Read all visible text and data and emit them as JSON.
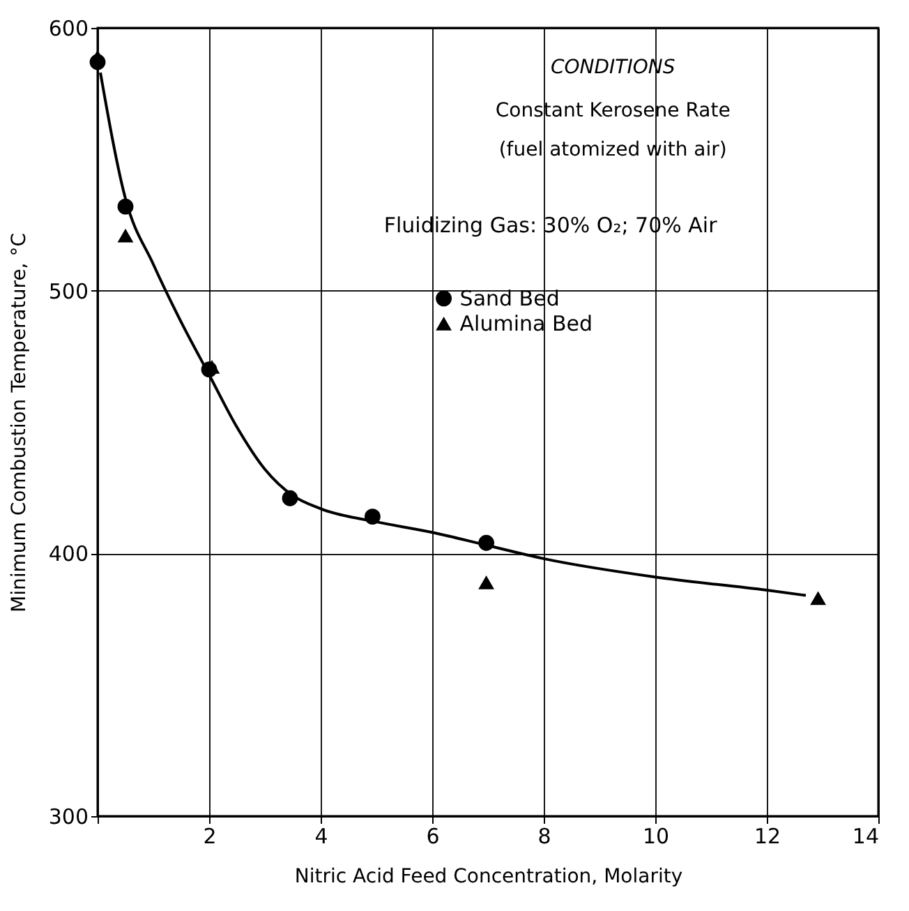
{
  "chart_data": {
    "type": "scatter",
    "xlabel": "Nitric Acid Feed Concentration, Molarity",
    "ylabel": "Minimum Combustion Temperature, °C",
    "xlim": [
      0,
      14
    ],
    "ylim": [
      300,
      600
    ],
    "xticks": [
      {
        "value": 0,
        "label": null
      },
      2,
      4,
      6,
      8,
      10,
      12,
      14
    ],
    "yticks": [
      300,
      400,
      500,
      600
    ],
    "grid": true,
    "legend": "top right",
    "annotations": [
      "CONDITIONS",
      "Constant Kerosene Rate",
      "(fuel atomized with air)",
      "Fluidizing Gas: 30% O₂; 70% Air"
    ],
    "series": [
      {
        "name": "Sand Bed",
        "type": "scatter",
        "marker": "circle",
        "color": "#000000",
        "x": [
          0,
          0.5,
          2,
          3.45,
          4.93,
          6.97
        ],
        "values": [
          587,
          532,
          470,
          421,
          414,
          404
        ]
      },
      {
        "name": "Alumina Bed",
        "type": "scatter",
        "marker": "triangle",
        "color": "#000000",
        "x": [
          0,
          0.5,
          2.05,
          6.97,
          12.92
        ],
        "values": [
          589,
          521,
          471,
          389,
          383
        ]
      },
      {
        "type": "line",
        "color": "#000000",
        "x": [
          0.05,
          0.5,
          1,
          1.5,
          2,
          2.5,
          3,
          3.5,
          4,
          5,
          6,
          7,
          8,
          10,
          12,
          12.7
        ],
        "values": [
          583,
          535,
          510,
          488,
          468,
          448,
          432,
          422,
          417,
          412,
          408,
          403,
          398,
          391,
          386,
          384
        ]
      }
    ]
  }
}
